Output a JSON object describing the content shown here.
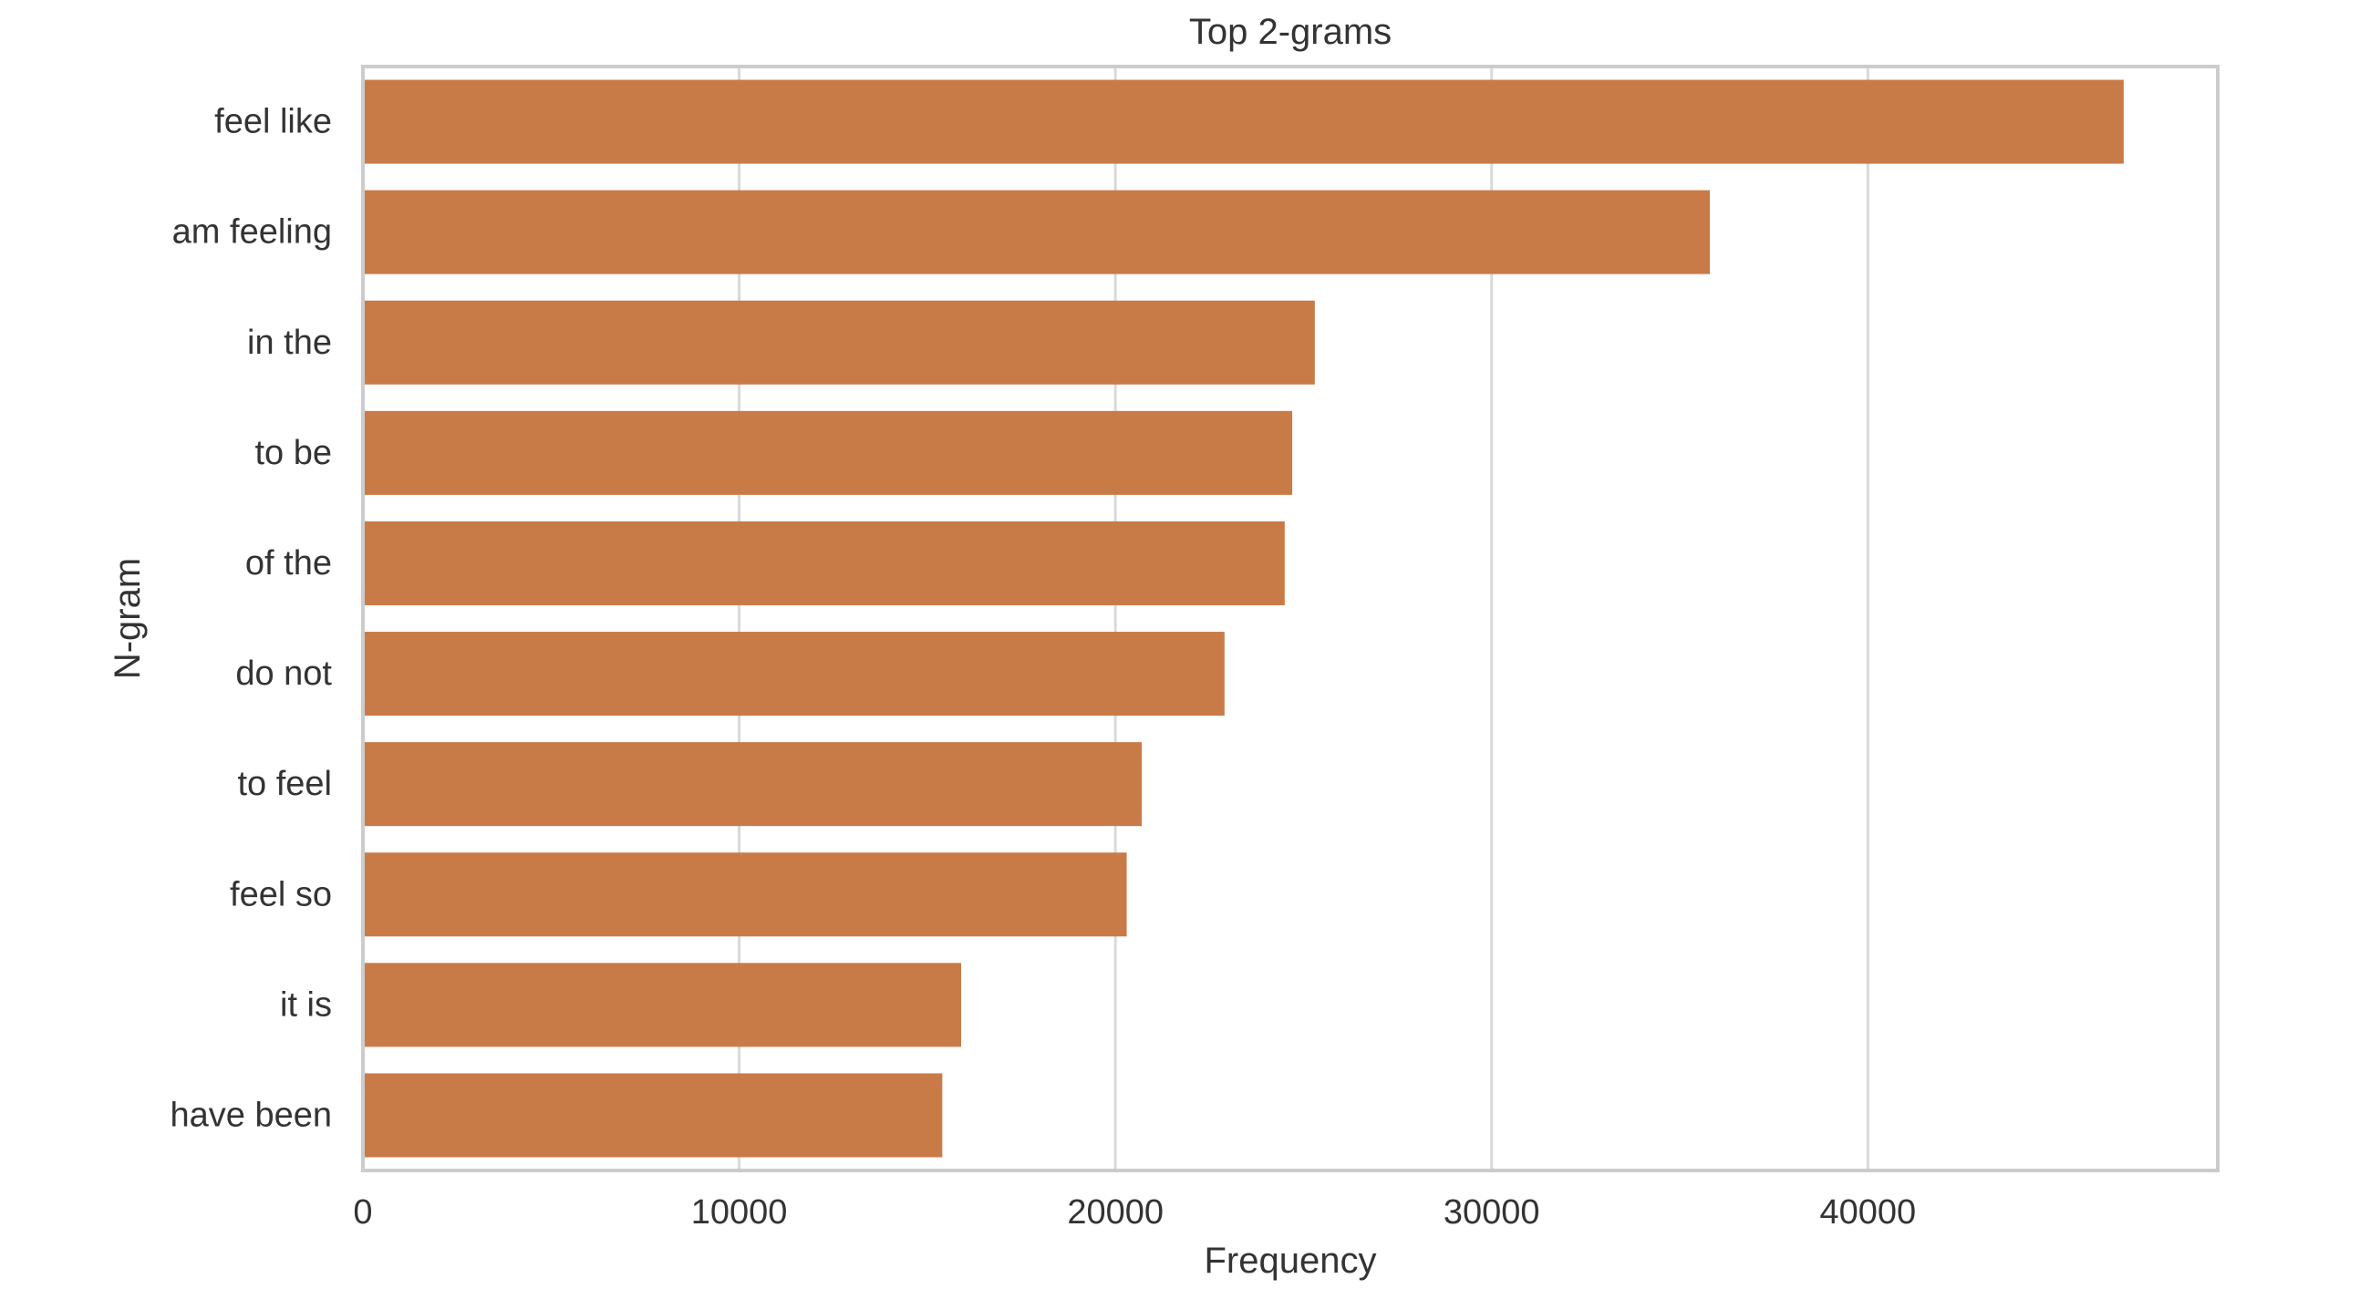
{
  "chart_data": {
    "type": "bar",
    "orientation": "horizontal",
    "title": "Top 2-grams",
    "xlabel": "Frequency",
    "ylabel": "N-gram",
    "categories": [
      "feel like",
      "am feeling",
      "in the",
      "to be",
      "of the",
      "do not",
      "to feel",
      "feel so",
      "it is",
      "have been"
    ],
    "values": [
      46800,
      35800,
      25300,
      24700,
      24500,
      22900,
      20700,
      20300,
      15900,
      15400
    ],
    "xlim": [
      0,
      49300
    ],
    "xticks": [
      0,
      10000,
      20000,
      30000,
      40000
    ],
    "xtick_labels": [
      "0",
      "10000",
      "20000",
      "30000",
      "40000"
    ],
    "grid": "x",
    "legend": "none",
    "bar_color": "#C97B47",
    "grid_color": "#D9D9D9",
    "frame_color": "#CCCCCC"
  }
}
